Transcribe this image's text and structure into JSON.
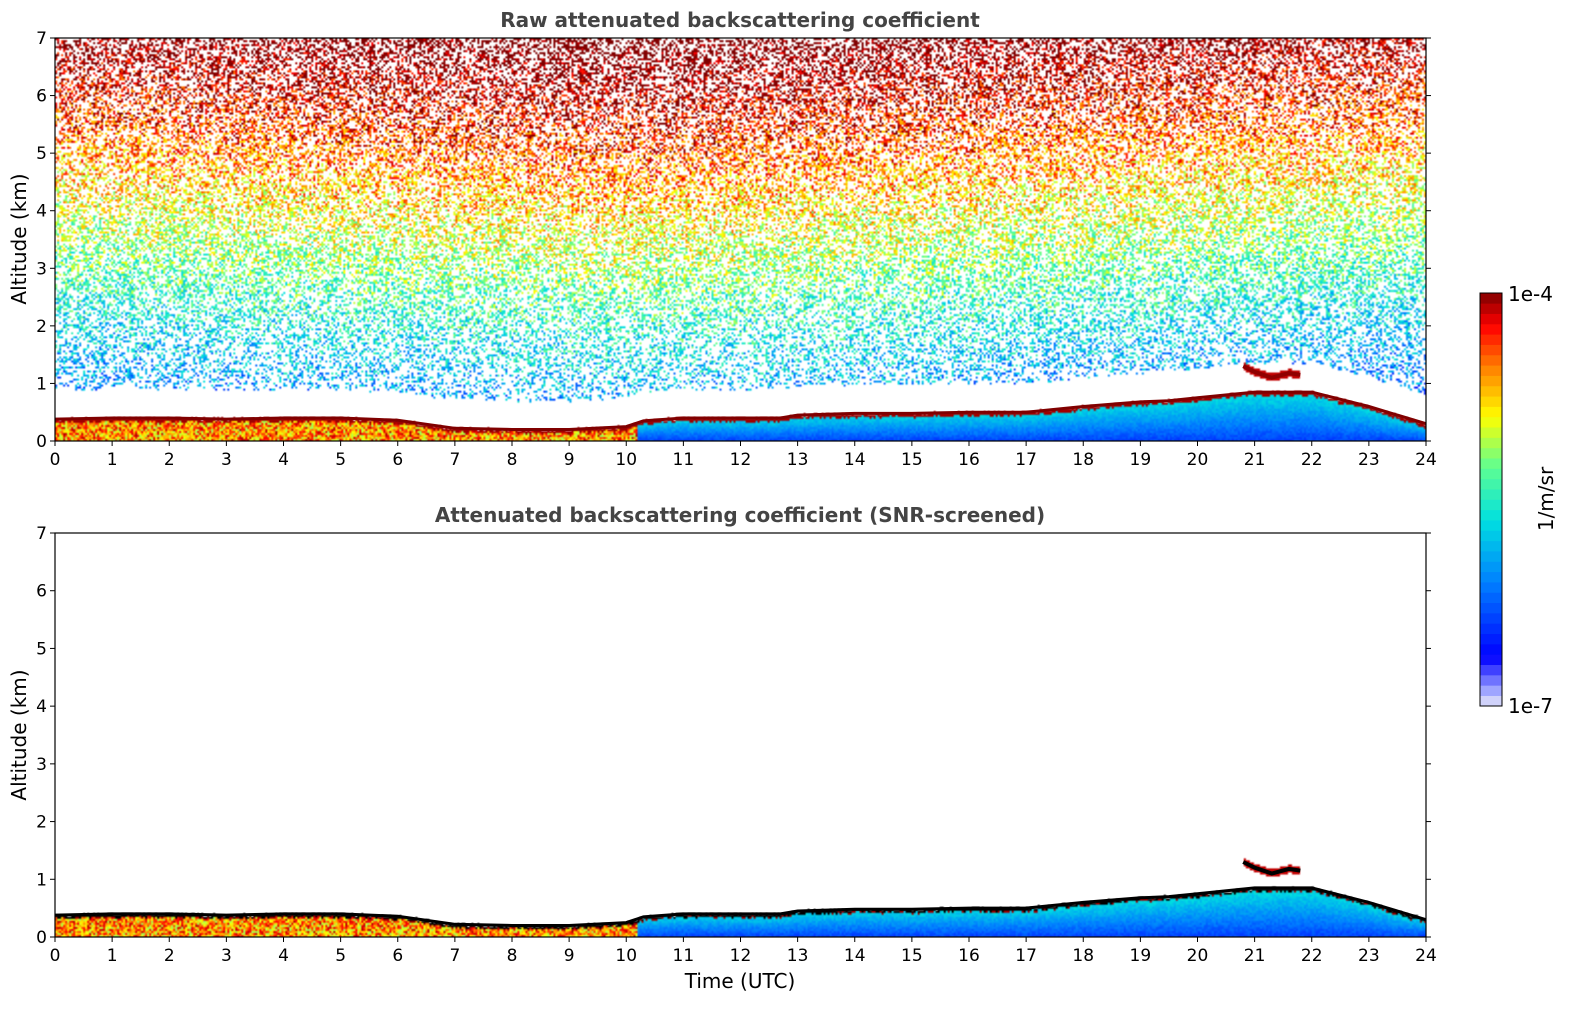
{
  "chart_data": [
    {
      "type": "heatmap",
      "title": "Raw attenuated backscattering coefficient",
      "xlabel": "",
      "ylabel": "Altitude (km)",
      "xlim": [
        0,
        24
      ],
      "ylim": [
        0,
        7
      ],
      "xticks": [
        "0",
        "1",
        "2",
        "3",
        "4",
        "5",
        "6",
        "7",
        "8",
        "9",
        "10",
        "11",
        "12",
        "13",
        "14",
        "15",
        "16",
        "17",
        "18",
        "19",
        "20",
        "21",
        "22",
        "23",
        "24"
      ],
      "yticks": [
        "0",
        "1",
        "2",
        "3",
        "4",
        "5",
        "6",
        "7"
      ],
      "grid": false,
      "boundary_layer_top_km": {
        "time_utc": [
          0,
          1,
          2,
          3,
          4,
          5,
          6,
          7,
          8,
          9,
          10,
          10.3,
          11,
          12,
          12.7,
          13,
          14,
          15,
          16,
          17,
          18,
          19,
          19.5,
          20,
          21,
          22,
          23,
          24
        ],
        "altitude_km": [
          0.38,
          0.4,
          0.4,
          0.38,
          0.4,
          0.4,
          0.36,
          0.22,
          0.2,
          0.2,
          0.25,
          0.35,
          0.4,
          0.4,
          0.4,
          0.45,
          0.48,
          0.48,
          0.5,
          0.5,
          0.6,
          0.68,
          0.7,
          0.75,
          0.85,
          0.85,
          0.6,
          0.3
        ]
      },
      "elevated_layer_km": {
        "time_utc": [
          20.8,
          21.0,
          21.3,
          21.6,
          21.8
        ],
        "altitude_km": [
          1.3,
          1.2,
          1.1,
          1.18,
          1.15
        ]
      },
      "noise_max_at_top": true
    },
    {
      "type": "heatmap",
      "title": "Attenuated backscattering coefficient (SNR-screened)",
      "xlabel": "Time (UTC)",
      "ylabel": "Altitude (km)",
      "xlim": [
        0,
        24
      ],
      "ylim": [
        0,
        7
      ],
      "xticks": [
        "0",
        "1",
        "2",
        "3",
        "4",
        "5",
        "6",
        "7",
        "8",
        "9",
        "10",
        "11",
        "12",
        "13",
        "14",
        "15",
        "16",
        "17",
        "18",
        "19",
        "20",
        "21",
        "22",
        "23",
        "24"
      ],
      "yticks": [
        "0",
        "1",
        "2",
        "3",
        "4",
        "5",
        "6",
        "7"
      ],
      "grid": false,
      "noise_max_at_top": false
    }
  ],
  "colorbar": {
    "label": "1/m/sr",
    "max_label": "1e-4",
    "min_label": "1e-7",
    "scale": "log",
    "range": [
      1e-07,
      0.0001
    ],
    "colormap": "jet"
  }
}
